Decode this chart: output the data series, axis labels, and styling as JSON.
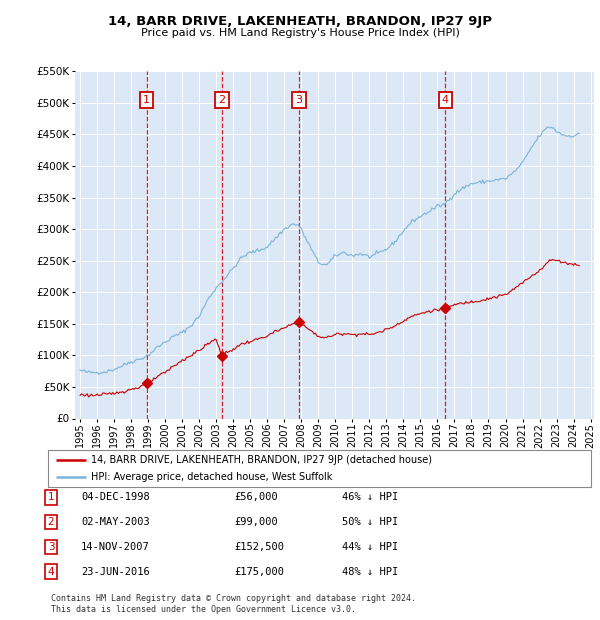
{
  "title": "14, BARR DRIVE, LAKENHEATH, BRANDON, IP27 9JP",
  "subtitle": "Price paid vs. HM Land Registry's House Price Index (HPI)",
  "legend_line1": "14, BARR DRIVE, LAKENHEATH, BRANDON, IP27 9JP (detached house)",
  "legend_line2": "HPI: Average price, detached house, West Suffolk",
  "footer_line1": "Contains HM Land Registry data © Crown copyright and database right 2024.",
  "footer_line2": "This data is licensed under the Open Government Licence v3.0.",
  "sales": [
    {
      "num": 1,
      "date": "04-DEC-1998",
      "price": 56000,
      "pct": "46% ↓ HPI",
      "year": 1998.92
    },
    {
      "num": 2,
      "date": "02-MAY-2003",
      "price": 99000,
      "pct": "50% ↓ HPI",
      "year": 2003.33
    },
    {
      "num": 3,
      "date": "14-NOV-2007",
      "price": 152500,
      "pct": "44% ↓ HPI",
      "year": 2007.87
    },
    {
      "num": 4,
      "date": "23-JUN-2016",
      "price": 175000,
      "pct": "48% ↓ HPI",
      "year": 2016.47
    }
  ],
  "ylim": [
    0,
    550000
  ],
  "yticks": [
    0,
    50000,
    100000,
    150000,
    200000,
    250000,
    300000,
    350000,
    400000,
    450000,
    500000,
    550000
  ],
  "hpi_color": "#7ab4d8",
  "sale_color": "#cc0000",
  "vline_color": "#cc0000",
  "bg_color": "#dce8f5",
  "plot_bg": "#ffffff",
  "number_box_color": "#cc0000",
  "xmin": 1995.0,
  "xmax": 2025.2
}
